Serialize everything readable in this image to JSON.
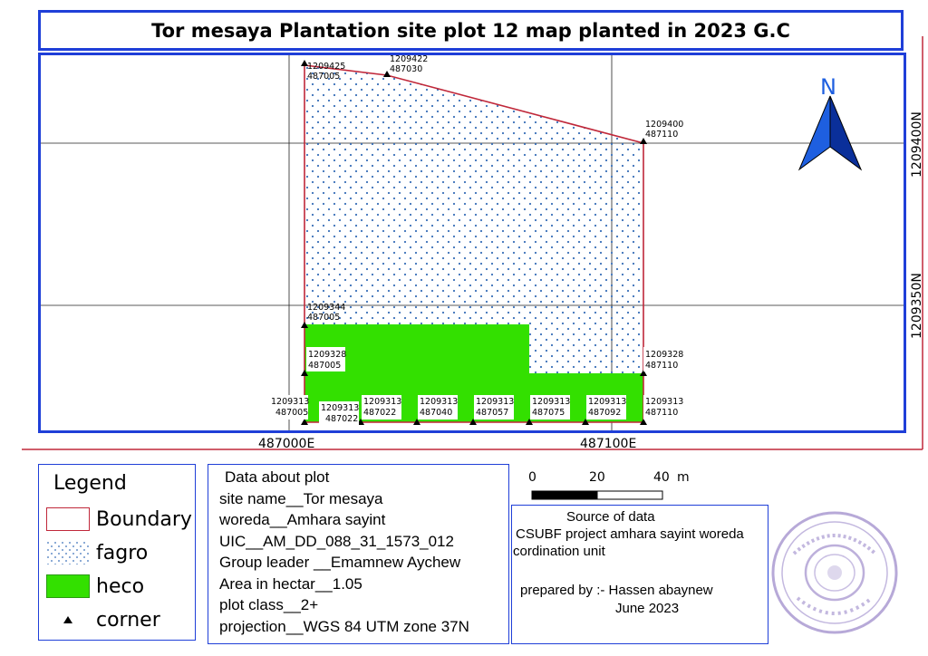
{
  "title": "Tor mesaya Plantation site plot 12 map planted in 2023 G.C",
  "map": {
    "north_label": "N",
    "grid_x_labels": [
      "487000E",
      "487100E"
    ],
    "grid_y_labels": [
      "1209400N",
      "1209350N"
    ],
    "corners": [
      {
        "n": "1209425",
        "e": "487005"
      },
      {
        "n": "1209422",
        "e": "487030"
      },
      {
        "n": "1209400",
        "e": "487110"
      },
      {
        "n": "1209344",
        "e": "487005"
      },
      {
        "n": "1209328",
        "e": "487005"
      },
      {
        "n": "1209328",
        "e": "487110"
      },
      {
        "n": "1209313",
        "e": "487005"
      },
      {
        "n": "1209313",
        "e": "487022"
      },
      {
        "n": "1209313",
        "e": "487022"
      },
      {
        "n": "1209313",
        "e": "487040"
      },
      {
        "n": "1209313",
        "e": "487057"
      },
      {
        "n": "1209313",
        "e": "487075"
      },
      {
        "n": "1209313",
        "e": "487092"
      },
      {
        "n": "1209313",
        "e": "487110"
      }
    ],
    "colors": {
      "boundary": "#c0283a",
      "heco": "#33e000",
      "fagro_dots": "#3a6fb8",
      "frame": "#1f3fd8",
      "north_arrow": "#1e5fe0"
    }
  },
  "legend": {
    "title": "Legend",
    "items": [
      {
        "label": "Boundary"
      },
      {
        "label": "fagro"
      },
      {
        "label": "heco"
      },
      {
        "label": "corner"
      }
    ]
  },
  "plot_info": {
    "title": "Data about plot",
    "lines": [
      "site name__Tor mesaya",
      "woreda__Amhara sayint",
      "UIC__AM_DD_088_31_1573_012",
      "Group leader __Emamnew Aychew",
      "Area in hectar__1.05",
      "plot class__2+",
      "projection__WGS 84 UTM zone 37N"
    ]
  },
  "scale_bar": {
    "ticks": [
      "0",
      "20",
      "40"
    ],
    "unit": "m"
  },
  "source": {
    "title": "Source of data",
    "line1": "CSUBF project amhara sayint woreda",
    "line2": "cordination unit",
    "prepared_by": "prepared by :- Hassen abaynew",
    "date": "June 2023"
  }
}
